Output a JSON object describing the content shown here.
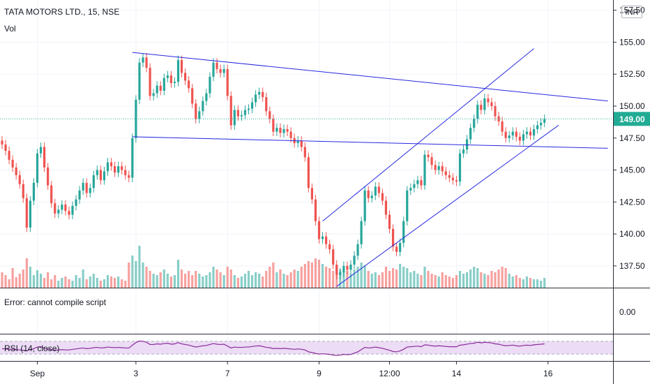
{
  "header": {
    "title": "TATA MOTORS LTD., 15, NSE",
    "volume_label": "Vol",
    "currency": "INR"
  },
  "indicators": {
    "error_text": "Error: cannot compile script",
    "error_axis_value": "0.00",
    "rsi_label": "RSI (14, close)"
  },
  "price_badge": "149.00",
  "colors": {
    "up": "#26a69a",
    "down": "#ef5350",
    "trendline": "#2828e0",
    "rsi_line": "#8a2b9c",
    "rsi_band": "#ecdcf5",
    "last_price": "#22ab94"
  },
  "chart_data": {
    "type": "candlestick",
    "y_axis": {
      "ticks": [
        137.5,
        140.0,
        142.5,
        145.0,
        147.5,
        150.0,
        152.5,
        155.0,
        157.5
      ],
      "tick_labels": [
        "137.50",
        "140.00",
        "142.50",
        "145.00",
        "147.50",
        "150.00",
        "152.50",
        "155.00",
        "157.50"
      ],
      "ylim": [
        135.8,
        158.3
      ]
    },
    "x_axis": {
      "labels": [
        "Sep",
        "3",
        "7",
        "9",
        "12:00",
        "14",
        "16"
      ],
      "label_index": [
        10,
        38,
        64,
        90,
        110,
        129,
        155
      ]
    },
    "last_price": 149.0,
    "closes": [
      147.0,
      146.5,
      145.8,
      145.2,
      144.6,
      143.9,
      142.8,
      140.5,
      142.6,
      144.0,
      146.3,
      146.8,
      145.2,
      143.8,
      142.4,
      141.6,
      141.9,
      142.3,
      141.8,
      141.5,
      142.2,
      142.7,
      143.4,
      144.0,
      143.2,
      143.6,
      144.6,
      145.0,
      144.2,
      144.9,
      145.6,
      145.3,
      144.8,
      145.3,
      145.0,
      144.6,
      144.4,
      147.5,
      150.5,
      153.4,
      153.8,
      153.0,
      150.8,
      151.0,
      151.6,
      151.2,
      152.2,
      152.4,
      151.8,
      151.9,
      153.6,
      152.6,
      152.0,
      151.4,
      150.2,
      149.0,
      149.6,
      150.4,
      151.0,
      152.3,
      153.4,
      152.9,
      152.6,
      152.9,
      150.8,
      148.5,
      149.7,
      149.2,
      149.3,
      149.7,
      149.8,
      150.3,
      150.9,
      151.1,
      150.7,
      149.6,
      149.0,
      148.0,
      148.3,
      147.9,
      148.2,
      148.0,
      147.5,
      147.1,
      147.3,
      146.8,
      146.0,
      143.6,
      142.7,
      141.0,
      139.6,
      139.8,
      139.2,
      138.8,
      137.6,
      136.8,
      137.0,
      137.5,
      137.2,
      137.6,
      138.3,
      139.2,
      141.0,
      143.4,
      142.8,
      143.0,
      143.7,
      143.2,
      142.6,
      141.5,
      140.4,
      139.0,
      138.6,
      139.3,
      141.0,
      143.4,
      143.6,
      143.9,
      144.2,
      143.8,
      146.2,
      146.0,
      145.4,
      145.0,
      145.3,
      144.9,
      144.6,
      144.4,
      144.2,
      144.1,
      146.3,
      146.6,
      147.4,
      148.3,
      149.0,
      150.1,
      149.7,
      150.6,
      150.3,
      150.0,
      149.2,
      148.8,
      148.0,
      147.5,
      147.7,
      148.0,
      147.6,
      147.3,
      147.8,
      148.0,
      147.7,
      148.2,
      148.5,
      148.7,
      149.0
    ],
    "volumes": [
      22,
      18,
      12,
      28,
      15,
      20,
      26,
      42,
      30,
      18,
      25,
      20,
      14,
      22,
      12,
      18,
      10,
      14,
      16,
      12,
      10,
      18,
      14,
      26,
      12,
      16,
      20,
      14,
      10,
      12,
      18,
      16,
      14,
      16,
      12,
      10,
      36,
      46,
      38,
      60,
      36,
      30,
      24,
      20,
      18,
      22,
      26,
      20,
      16,
      18,
      40,
      26,
      20,
      24,
      18,
      24,
      20,
      16,
      18,
      22,
      30,
      26,
      22,
      18,
      30,
      26,
      18,
      14,
      16,
      20,
      24,
      18,
      22,
      20,
      16,
      24,
      30,
      36,
      22,
      26,
      20,
      18,
      22,
      26,
      24,
      30,
      34,
      38,
      36,
      42,
      40,
      34,
      30,
      28,
      24,
      32,
      26,
      22,
      24,
      20,
      26,
      30,
      36,
      32,
      24,
      20,
      22,
      18,
      22,
      30,
      24,
      28,
      26,
      34,
      30,
      28,
      22,
      24,
      20,
      18,
      30,
      24,
      20,
      18,
      16,
      22,
      18,
      16,
      14,
      18,
      24,
      20,
      22,
      26,
      30,
      28,
      22,
      20,
      18,
      24,
      22,
      26,
      30,
      28,
      20,
      16,
      18,
      14,
      12,
      16,
      14,
      12,
      12,
      10,
      14
    ],
    "rsi": [
      47,
      46,
      45,
      45,
      44,
      43,
      42,
      40,
      44,
      47,
      52,
      53,
      48,
      45,
      43,
      42,
      43,
      44,
      43,
      43,
      45,
      46,
      48,
      49,
      47,
      48,
      50,
      51,
      49,
      50,
      52,
      51,
      50,
      51,
      50,
      49,
      49,
      58,
      66,
      71,
      70,
      67,
      60,
      60,
      62,
      61,
      63,
      64,
      61,
      62,
      66,
      62,
      60,
      58,
      55,
      52,
      54,
      56,
      57,
      60,
      63,
      61,
      60,
      61,
      55,
      49,
      52,
      51,
      51,
      52,
      52,
      54,
      55,
      56,
      54,
      51,
      50,
      47,
      48,
      47,
      48,
      47,
      46,
      45,
      46,
      45,
      43,
      37,
      35,
      32,
      30,
      31,
      30,
      29,
      27,
      26,
      27,
      29,
      28,
      29,
      33,
      37,
      44,
      51,
      49,
      50,
      52,
      50,
      48,
      45,
      42,
      38,
      37,
      40,
      45,
      52,
      53,
      54,
      55,
      53,
      59,
      58,
      56,
      55,
      56,
      55,
      54,
      53,
      53,
      53,
      58,
      59,
      61,
      63,
      64,
      67,
      65,
      67,
      66,
      65,
      62,
      61,
      58,
      56,
      57,
      58,
      56,
      55,
      57,
      58,
      57,
      59,
      60,
      61,
      62
    ],
    "rsi_band": [
      30,
      70
    ],
    "trendlines": [
      {
        "from": [
          37,
          154.2
        ],
        "to": [
          172,
          150.4
        ]
      },
      {
        "from": [
          37,
          147.6
        ],
        "to": [
          172,
          146.7
        ]
      },
      {
        "from": [
          91,
          141.0
        ],
        "to": [
          151,
          154.5
        ]
      },
      {
        "from": [
          95,
          135.9
        ],
        "to": [
          158,
          148.5
        ]
      }
    ]
  }
}
